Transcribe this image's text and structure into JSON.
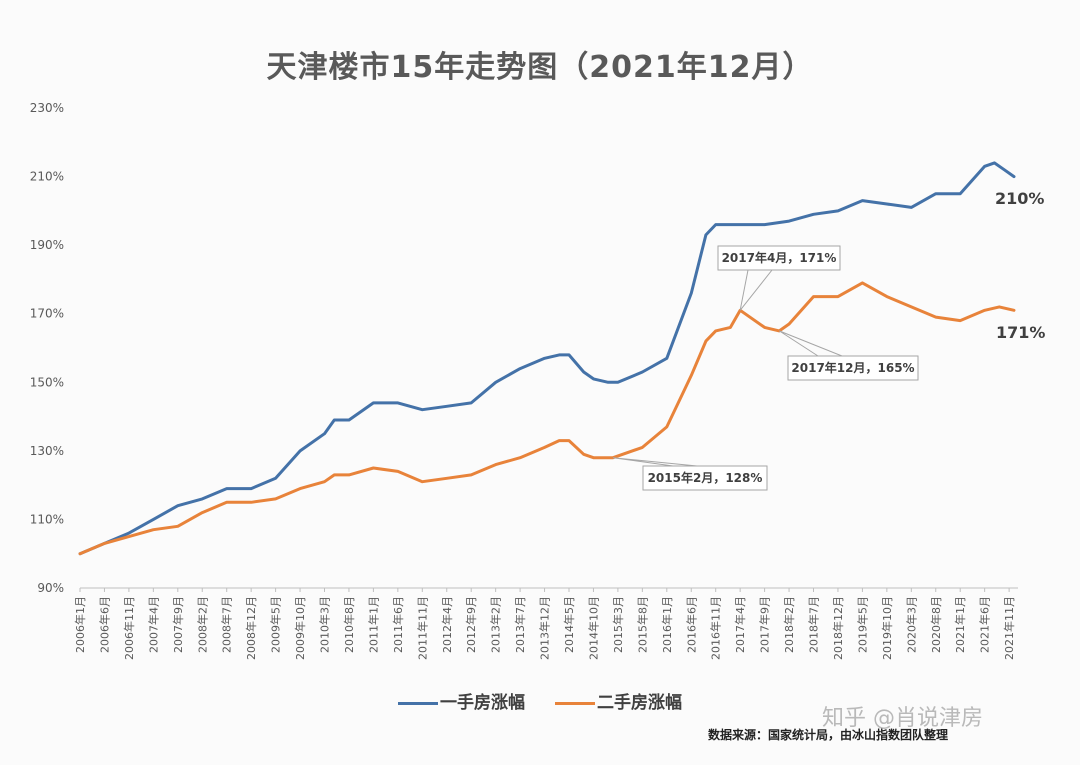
{
  "chart_data": {
    "type": "line",
    "title": "天津楼市15年走势图（2021年12月）",
    "ylim": [
      90,
      230
    ],
    "y_ticks": [
      "90%",
      "110%",
      "130%",
      "150%",
      "170%",
      "190%",
      "210%",
      "230%"
    ],
    "y_tick_values": [
      90,
      110,
      130,
      150,
      170,
      190,
      210,
      230
    ],
    "x_start": "2006-01",
    "x_end": "2021-12",
    "x_tick_labels": [
      "2006年1月",
      "2006年6月",
      "2006年11月",
      "2007年4月",
      "2007年9月",
      "2008年2月",
      "2008年7月",
      "2008年12月",
      "2009年5月",
      "2009年10月",
      "2010年3月",
      "2010年8月",
      "2011年1月",
      "2011年6月",
      "2011年11月",
      "2012年4月",
      "2012年9月",
      "2013年2月",
      "2013年7月",
      "2013年12月",
      "2014年5月",
      "2014年10月",
      "2015年3月",
      "2015年8月",
      "2016年1月",
      "2016年6月",
      "2016年11月",
      "2017年4月",
      "2017年9月",
      "2018年2月",
      "2018年7月",
      "2018年12月",
      "2019年5月",
      "2019年10月",
      "2020年3月",
      "2020年8月",
      "2021年1月",
      "2021年6月",
      "2021年11月"
    ],
    "series": [
      {
        "name": "一手房涨幅",
        "color": "#4472a8",
        "points": [
          [
            "2006-01",
            100
          ],
          [
            "2006-06",
            103
          ],
          [
            "2006-11",
            106
          ],
          [
            "2007-04",
            110
          ],
          [
            "2007-09",
            114
          ],
          [
            "2008-02",
            116
          ],
          [
            "2008-07",
            119
          ],
          [
            "2008-12",
            119
          ],
          [
            "2009-05",
            122
          ],
          [
            "2009-10",
            130
          ],
          [
            "2010-03",
            135
          ],
          [
            "2010-05",
            139
          ],
          [
            "2010-08",
            139
          ],
          [
            "2011-01",
            144
          ],
          [
            "2011-06",
            144
          ],
          [
            "2011-11",
            142
          ],
          [
            "2012-04",
            143
          ],
          [
            "2012-09",
            144
          ],
          [
            "2013-02",
            150
          ],
          [
            "2013-07",
            154
          ],
          [
            "2013-12",
            157
          ],
          [
            "2014-03",
            158
          ],
          [
            "2014-05",
            158
          ],
          [
            "2014-08",
            153
          ],
          [
            "2014-10",
            151
          ],
          [
            "2015-01",
            150
          ],
          [
            "2015-03",
            150
          ],
          [
            "2015-08",
            153
          ],
          [
            "2016-01",
            157
          ],
          [
            "2016-06",
            176
          ],
          [
            "2016-09",
            193
          ],
          [
            "2016-11",
            196
          ],
          [
            "2017-04",
            196
          ],
          [
            "2017-09",
            196
          ],
          [
            "2018-02",
            197
          ],
          [
            "2018-07",
            199
          ],
          [
            "2018-12",
            200
          ],
          [
            "2019-05",
            203
          ],
          [
            "2019-10",
            202
          ],
          [
            "2020-03",
            201
          ],
          [
            "2020-08",
            205
          ],
          [
            "2021-01",
            205
          ],
          [
            "2021-06",
            213
          ],
          [
            "2021-08",
            214
          ],
          [
            "2021-10",
            212
          ],
          [
            "2021-12",
            210
          ]
        ]
      },
      {
        "name": "二手房涨幅",
        "color": "#e8833a",
        "points": [
          [
            "2006-01",
            100
          ],
          [
            "2006-06",
            103
          ],
          [
            "2006-11",
            105
          ],
          [
            "2007-04",
            107
          ],
          [
            "2007-09",
            108
          ],
          [
            "2008-02",
            112
          ],
          [
            "2008-07",
            115
          ],
          [
            "2008-12",
            115
          ],
          [
            "2009-05",
            116
          ],
          [
            "2009-10",
            119
          ],
          [
            "2010-03",
            121
          ],
          [
            "2010-05",
            123
          ],
          [
            "2010-08",
            123
          ],
          [
            "2011-01",
            125
          ],
          [
            "2011-06",
            124
          ],
          [
            "2011-11",
            121
          ],
          [
            "2012-04",
            122
          ],
          [
            "2012-09",
            123
          ],
          [
            "2013-02",
            126
          ],
          [
            "2013-07",
            128
          ],
          [
            "2013-12",
            131
          ],
          [
            "2014-03",
            133
          ],
          [
            "2014-05",
            133
          ],
          [
            "2014-08",
            129
          ],
          [
            "2014-10",
            128
          ],
          [
            "2015-02",
            128
          ],
          [
            "2015-08",
            131
          ],
          [
            "2016-01",
            137
          ],
          [
            "2016-06",
            152
          ],
          [
            "2016-09",
            162
          ],
          [
            "2016-11",
            165
          ],
          [
            "2017-02",
            166
          ],
          [
            "2017-04",
            171
          ],
          [
            "2017-09",
            166
          ],
          [
            "2017-12",
            165
          ],
          [
            "2018-02",
            167
          ],
          [
            "2018-07",
            175
          ],
          [
            "2018-12",
            175
          ],
          [
            "2019-05",
            179
          ],
          [
            "2019-10",
            175
          ],
          [
            "2020-03",
            172
          ],
          [
            "2020-08",
            169
          ],
          [
            "2021-01",
            168
          ],
          [
            "2021-06",
            171
          ],
          [
            "2021-09",
            172
          ],
          [
            "2021-12",
            171
          ]
        ]
      }
    ],
    "annotations": [
      {
        "text": "2017年4月，171%",
        "x": "2017-04",
        "y": 171
      },
      {
        "text": "2017年12月，165%",
        "x": "2017-12",
        "y": 165
      },
      {
        "text": "2015年2月，128%",
        "x": "2015-02",
        "y": 128
      }
    ],
    "end_labels": [
      {
        "text": "210%",
        "series": "一手房涨幅"
      },
      {
        "text": "171%",
        "series": "二手房涨幅"
      }
    ],
    "legend_position": "bottom",
    "grid": false
  },
  "footer": {
    "source": "数据来源：国家统计局，由冰山指数团队整理",
    "watermark": "知乎 @肖说津房"
  }
}
